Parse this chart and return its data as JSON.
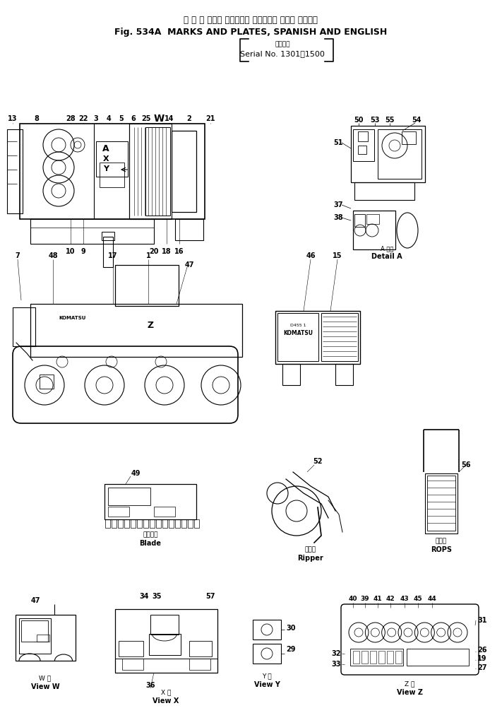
{
  "title_japanese": "マ ー ク および プレート， スペイン語 および 英　　語",
  "title_english": "Fig. 534A  MARKS AND PLATES, SPANISH AND ENGLISH",
  "serial_label_jp": "適用号機",
  "serial_label_en": "Serial No. 1301～1500",
  "bg_color": "#f0f0f0",
  "text_color": "#000000",
  "line_color": "#000000",
  "fig_width": 7.11,
  "fig_height": 10.26,
  "fig_dpi": 100
}
